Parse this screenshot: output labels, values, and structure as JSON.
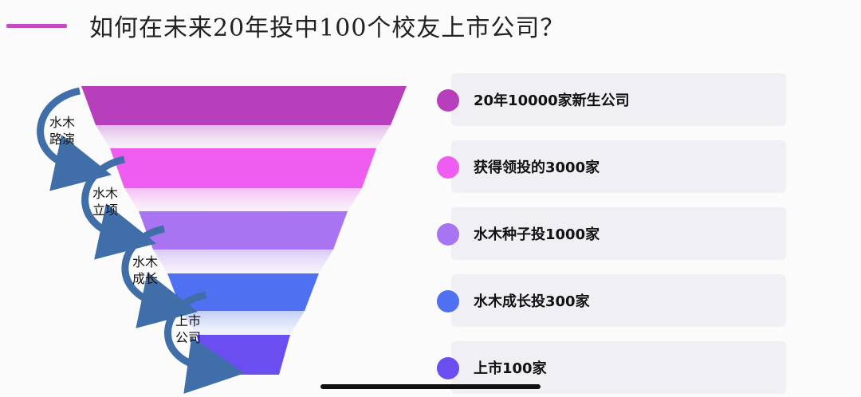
{
  "title": "如何在未来20年投中100个校友上市公司？",
  "colors": {
    "accent": "#c24bc0",
    "stage1": "#b83fbc",
    "stage2": "#ee5cf0",
    "stage3": "#a874f2",
    "stage4": "#4f70f0",
    "stage5": "#6b4ef0",
    "arrow": "#3f6ea8"
  },
  "funnel": [
    {
      "label": "20年10000家新生公司",
      "color": "#b83fbc"
    },
    {
      "label": "获得领投的3000家",
      "color": "#ee5cf0"
    },
    {
      "label": "水木种子投1000家",
      "color": "#a874f2"
    },
    {
      "label": "水木成长投300家",
      "color": "#4f70f0"
    },
    {
      "label": "上市100家",
      "color": "#6b4ef0"
    }
  ],
  "steps": [
    {
      "line1": "水木",
      "line2": "路演"
    },
    {
      "line1": "水木",
      "line2": "立项"
    },
    {
      "line1": "水木",
      "line2": "成长"
    },
    {
      "line1": "上市",
      "line2": "公司"
    }
  ]
}
